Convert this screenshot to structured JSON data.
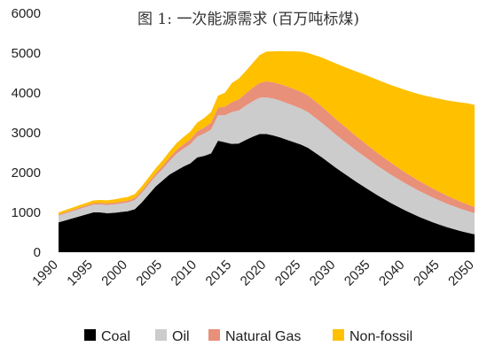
{
  "chart_data": {
    "type": "area",
    "stacked": true,
    "title": "图 1: 一次能源需求 (百万吨标煤)",
    "xlabel": "",
    "ylabel": "",
    "xlim": [
      1990,
      2050
    ],
    "ylim": [
      0,
      6000
    ],
    "x_ticks": [
      1990,
      1995,
      2000,
      2005,
      2010,
      2015,
      2020,
      2025,
      2030,
      2035,
      2040,
      2045,
      2050
    ],
    "y_ticks": [
      0,
      1000,
      2000,
      3000,
      4000,
      5000,
      6000
    ],
    "grid": false,
    "legend_position": "bottom",
    "x": [
      1990,
      1991,
      1992,
      1993,
      1994,
      1995,
      1996,
      1997,
      1998,
      1999,
      2000,
      2001,
      2002,
      2003,
      2004,
      2005,
      2006,
      2007,
      2008,
      2009,
      2010,
      2011,
      2012,
      2013,
      2014,
      2015,
      2016,
      2017,
      2018,
      2019,
      2020,
      2021,
      2022,
      2023,
      2024,
      2025,
      2026,
      2027,
      2028,
      2029,
      2030,
      2031,
      2032,
      2033,
      2034,
      2035,
      2036,
      2037,
      2038,
      2039,
      2040,
      2041,
      2042,
      2043,
      2044,
      2045,
      2046,
      2047,
      2048,
      2049,
      2050
    ],
    "series": [
      {
        "name": "Coal",
        "color": "#000000",
        "values": [
          750,
          800,
          850,
          900,
          950,
          1000,
          1000,
          980,
          990,
          1010,
          1030,
          1080,
          1250,
          1450,
          1650,
          1800,
          1950,
          2050,
          2150,
          2230,
          2380,
          2420,
          2480,
          2800,
          2760,
          2720,
          2730,
          2820,
          2900,
          2970,
          2970,
          2930,
          2880,
          2820,
          2760,
          2700,
          2620,
          2500,
          2380,
          2250,
          2120,
          2000,
          1880,
          1760,
          1650,
          1540,
          1430,
          1330,
          1230,
          1140,
          1050,
          970,
          890,
          820,
          750,
          690,
          630,
          580,
          530,
          490,
          450
        ]
      },
      {
        "name": "Oil",
        "color": "#cccccc",
        "values": [
          170,
          175,
          180,
          185,
          190,
          195,
          200,
          205,
          210,
          215,
          220,
          230,
          240,
          250,
          260,
          290,
          340,
          420,
          450,
          480,
          520,
          560,
          600,
          640,
          680,
          800,
          830,
          860,
          890,
          910,
          920,
          925,
          925,
          920,
          915,
          905,
          895,
          880,
          865,
          850,
          830,
          815,
          800,
          785,
          770,
          755,
          740,
          725,
          710,
          695,
          680,
          665,
          650,
          635,
          620,
          605,
          590,
          575,
          560,
          545,
          530
        ]
      },
      {
        "name": "Natural Gas",
        "color": "#e8907a",
        "values": [
          25,
          27,
          29,
          31,
          33,
          35,
          37,
          39,
          41,
          43,
          45,
          50,
          55,
          60,
          65,
          75,
          85,
          95,
          105,
          120,
          135,
          150,
          170,
          190,
          215,
          250,
          280,
          310,
          340,
          370,
          400,
          410,
          415,
          418,
          420,
          420,
          418,
          414,
          408,
          400,
          390,
          380,
          370,
          358,
          346,
          334,
          322,
          310,
          298,
          286,
          274,
          262,
          250,
          238,
          226,
          214,
          202,
          190,
          178,
          166,
          155
        ]
      },
      {
        "name": "Non-fossil",
        "color": "#ffc000",
        "values": [
          55,
          58,
          61,
          64,
          67,
          70,
          75,
          80,
          85,
          90,
          95,
          100,
          110,
          120,
          130,
          140,
          155,
          170,
          185,
          200,
          220,
          240,
          270,
          300,
          350,
          480,
          520,
          560,
          620,
          700,
          750,
          780,
          830,
          890,
          950,
          1010,
          1070,
          1150,
          1235,
          1315,
          1400,
          1475,
          1550,
          1630,
          1704,
          1771,
          1838,
          1895,
          1957,
          2014,
          2071,
          2123,
          2180,
          2232,
          2289,
          2341,
          2393,
          2440,
          2492,
          2539,
          2565
        ]
      }
    ]
  }
}
